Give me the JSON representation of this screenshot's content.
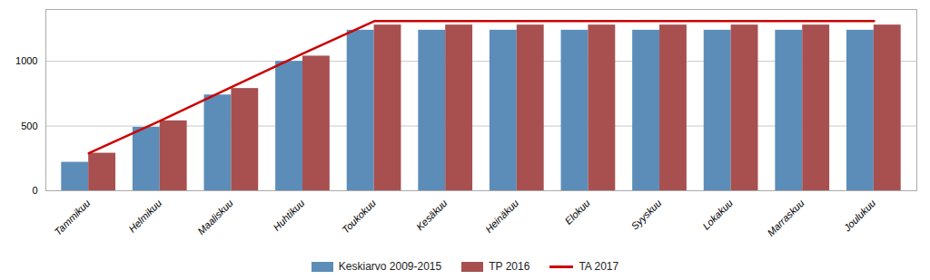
{
  "chart_data": {
    "type": "bar",
    "categories": [
      "Tammikuu",
      "Helmikuu",
      "Maaliskuu",
      "Huhtikuu",
      "Toukokuu",
      "Kesäkuu",
      "Heinäkuu",
      "Elokuu",
      "Syyskuu",
      "Lokakuu",
      "Marraskuu",
      "Joulukuu"
    ],
    "series": [
      {
        "name": "Keskiarvo 2009-2015",
        "color": "#5B8DB8",
        "values": [
          220,
          490,
          740,
          1000,
          1240,
          1240,
          1240,
          1240,
          1240,
          1240,
          1240,
          1240
        ]
      },
      {
        "name": "TP 2016",
        "color": "#A85050",
        "values": [
          290,
          540,
          790,
          1040,
          1280,
          1280,
          1280,
          1280,
          1280,
          1280,
          1280,
          1280
        ]
      },
      {
        "name": "TA 2017",
        "color": "#CC0000",
        "type": "line",
        "values": [
          290,
          540,
          800,
          1060,
          1310,
          1310,
          1310,
          1310,
          1310,
          1310,
          1310,
          1310
        ]
      }
    ],
    "ylim": [
      0,
      1400
    ],
    "yticks": [
      0,
      500,
      1000
    ],
    "grid": true,
    "legend": "bottom"
  }
}
